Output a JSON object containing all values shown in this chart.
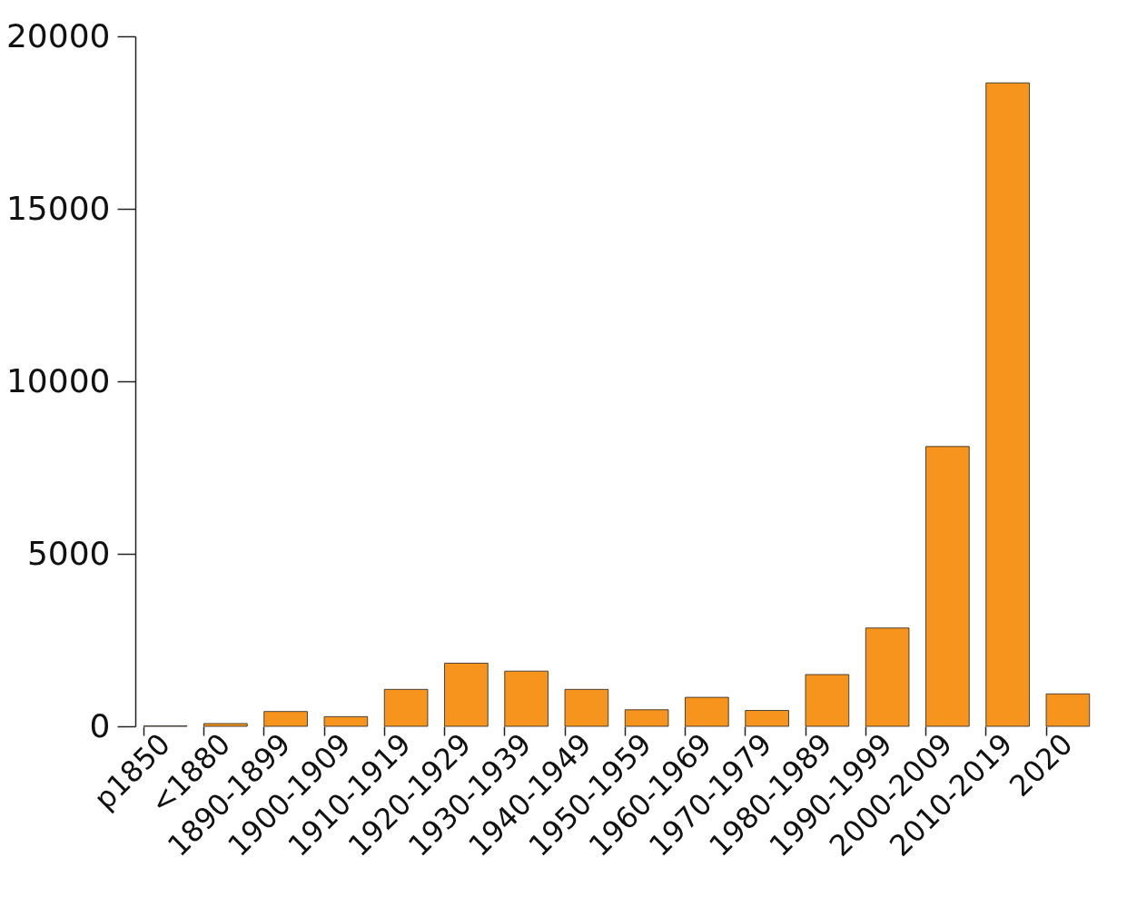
{
  "chart_data": {
    "type": "bar",
    "categories": [
      "p1850",
      "<1880",
      "1890-1899",
      "1900-1909",
      "1910-1919",
      "1920-1929",
      "1930-1939",
      "1940-1949",
      "1950-1959",
      "1960-1969",
      "1970-1979",
      "1980-1989",
      "1990-1999",
      "2000-2009",
      "2010-2019",
      "2020"
    ],
    "values": [
      10,
      80,
      430,
      280,
      1070,
      1830,
      1600,
      1070,
      480,
      840,
      460,
      1500,
      2850,
      8110,
      18650,
      940
    ],
    "color": "#f7941d",
    "ylim": [
      0,
      20000
    ],
    "yticks": [
      0,
      5000,
      10000,
      15000,
      20000
    ],
    "grid": false
  }
}
